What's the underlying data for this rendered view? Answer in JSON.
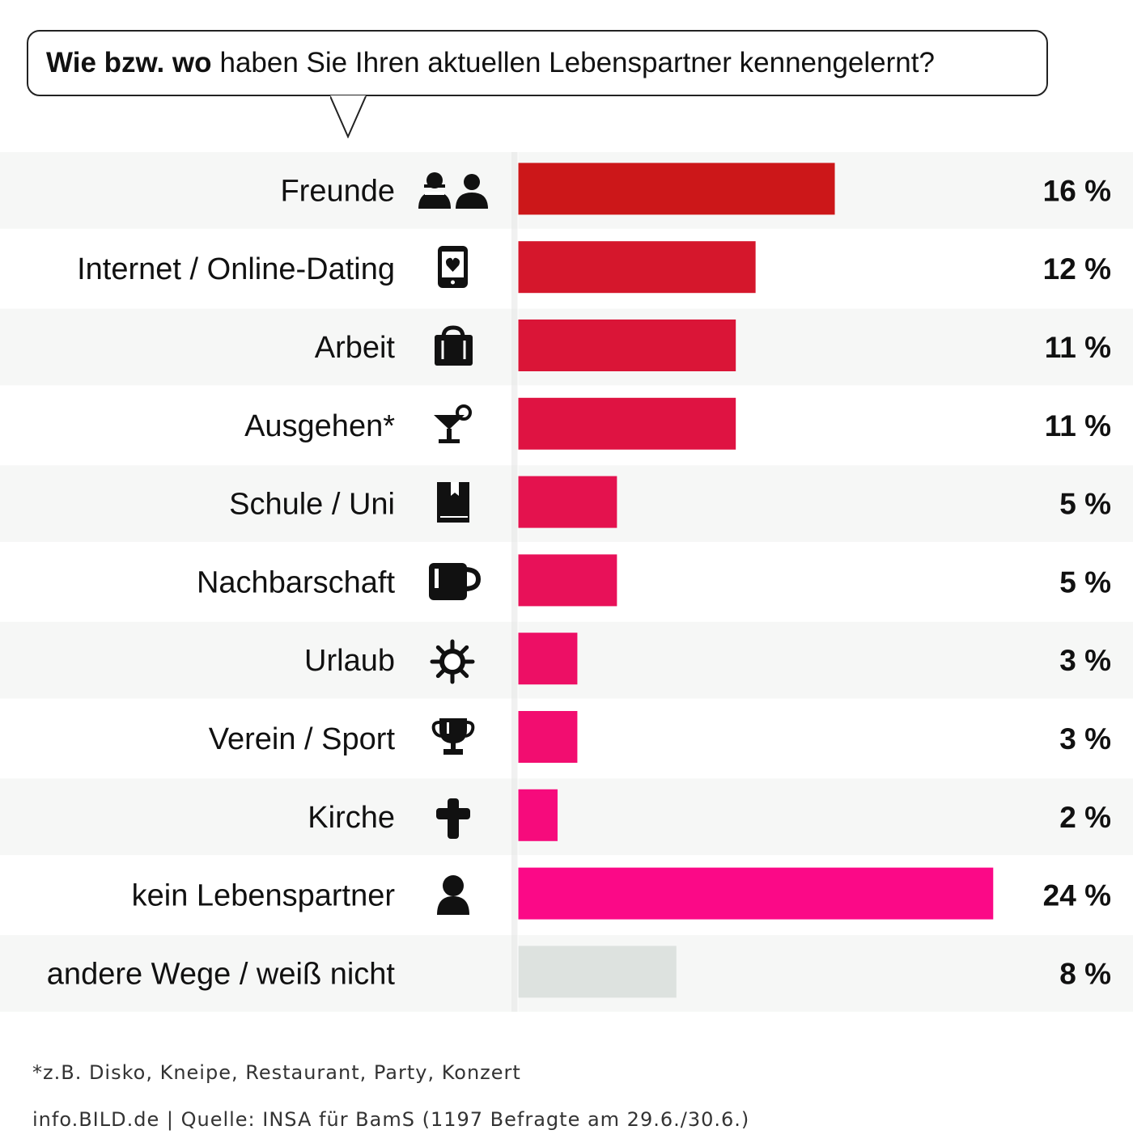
{
  "title": {
    "bold": "Wie bzw. wo",
    "rest": "haben Sie Ihren aktuellen Lebenspartner kennengelernt?"
  },
  "chart_data": {
    "type": "bar",
    "orientation": "horizontal",
    "title": "Wie bzw. wo haben Sie Ihren aktuellen Lebenspartner kennengelernt?",
    "unit": "%",
    "xlim": [
      0,
      30
    ],
    "categories": [
      "Freunde",
      "Internet / Online-Dating",
      "Arbeit",
      "Ausgehen*",
      "Schule / Uni",
      "Nachbarschaft",
      "Urlaub",
      "Verein / Sport",
      "Kirche",
      "kein Lebenspartner",
      "andere Wege / weiß nicht"
    ],
    "values": [
      16,
      12,
      11,
      11,
      5,
      5,
      3,
      3,
      2,
      24,
      8
    ],
    "value_labels": [
      "16 %",
      "12 %",
      "11 %",
      "11 %",
      "5 %",
      "5 %",
      "3 %",
      "3 %",
      "2 %",
      "24 %",
      "8 %"
    ],
    "icons": [
      "friends-icon",
      "phone-heart-icon",
      "briefcase-icon",
      "cocktail-icon",
      "book-icon",
      "mug-icon",
      "sun-icon",
      "trophy-icon",
      "cross-icon",
      "person-icon",
      ""
    ],
    "colors": [
      "#cc1719",
      "#d5172c",
      "#da1537",
      "#df1342",
      "#e4124e",
      "#e81159",
      "#ed0f65",
      "#f20d70",
      "#f60b7c",
      "#fb0987",
      "#dde2df"
    ]
  },
  "footnotes": {
    "asterisk": "*z.B. Disko, Kneipe, Restaurant, Party, Konzert",
    "source": "info.BILD.de | Quelle: INSA für BamS (1197 Befragte am 29.6./30.6.)"
  },
  "colors": {
    "row_stripe": "#f6f7f6",
    "divider": "#e8e8e8",
    "icon": "#111111"
  }
}
